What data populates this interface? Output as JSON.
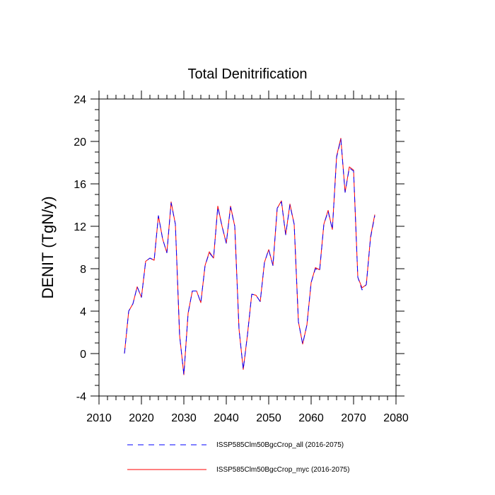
{
  "chart_data": {
    "type": "line",
    "title": "Total Denitrification",
    "xlabel": "",
    "ylabel": "DENIT  (TgN/y)",
    "xlim": [
      2010,
      2080
    ],
    "ylim": [
      -4,
      24
    ],
    "xticks": [
      2010,
      2020,
      2030,
      2040,
      2050,
      2060,
      2070,
      2080
    ],
    "yticks": [
      -4,
      0,
      4,
      8,
      12,
      16,
      20,
      24
    ],
    "legend_position": "bottom",
    "x": [
      2016,
      2017,
      2018,
      2019,
      2020,
      2021,
      2022,
      2023,
      2024,
      2025,
      2026,
      2027,
      2028,
      2029,
      2030,
      2031,
      2032,
      2033,
      2034,
      2035,
      2036,
      2037,
      2038,
      2039,
      2040,
      2041,
      2042,
      2043,
      2044,
      2045,
      2046,
      2047,
      2048,
      2049,
      2050,
      2051,
      2052,
      2053,
      2054,
      2055,
      2056,
      2057,
      2058,
      2059,
      2060,
      2061,
      2062,
      2063,
      2064,
      2065,
      2066,
      2067,
      2068,
      2069,
      2070,
      2071,
      2072,
      2073,
      2074,
      2075
    ],
    "series": [
      {
        "name": "ISSP585Clm50BgcCrop_all (2016-2075)",
        "color": "#0000ff",
        "style": "dashed",
        "values": [
          0.0,
          4.0,
          4.7,
          6.3,
          5.3,
          8.7,
          9.0,
          8.8,
          13.0,
          10.8,
          9.5,
          14.2,
          12.2,
          1.7,
          -2.0,
          3.8,
          5.9,
          5.9,
          4.8,
          8.3,
          9.5,
          9.0,
          13.8,
          12.0,
          10.4,
          13.8,
          12.0,
          2.3,
          -1.5,
          1.8,
          5.6,
          5.5,
          4.9,
          8.6,
          9.8,
          8.3,
          13.7,
          14.3,
          11.2,
          14.0,
          12.2,
          3.0,
          0.9,
          2.7,
          6.7,
          8.0,
          7.8,
          12.2,
          13.4,
          11.7,
          18.5,
          20.2,
          15.2,
          17.5,
          17.2,
          7.2,
          6.0,
          6.5,
          10.9,
          13.0
        ]
      },
      {
        "name": "ISSP585Clm50BgcCrop_myc (2016-2075)",
        "color": "#ff0000",
        "style": "solid",
        "values": [
          0.0,
          4.0,
          4.7,
          6.3,
          5.3,
          8.7,
          9.0,
          8.8,
          13.0,
          10.8,
          9.5,
          14.3,
          12.2,
          1.7,
          -2.0,
          3.8,
          5.9,
          5.9,
          4.8,
          8.3,
          9.6,
          9.0,
          13.9,
          12.0,
          10.4,
          13.9,
          12.0,
          2.3,
          -1.5,
          1.8,
          5.6,
          5.5,
          4.9,
          8.6,
          9.8,
          8.3,
          13.7,
          14.4,
          11.2,
          14.1,
          12.2,
          3.0,
          0.9,
          2.7,
          6.7,
          8.1,
          7.9,
          12.2,
          13.5,
          11.7,
          18.6,
          20.3,
          15.2,
          17.6,
          17.3,
          7.2,
          6.2,
          6.5,
          11.0,
          13.1
        ]
      }
    ]
  }
}
